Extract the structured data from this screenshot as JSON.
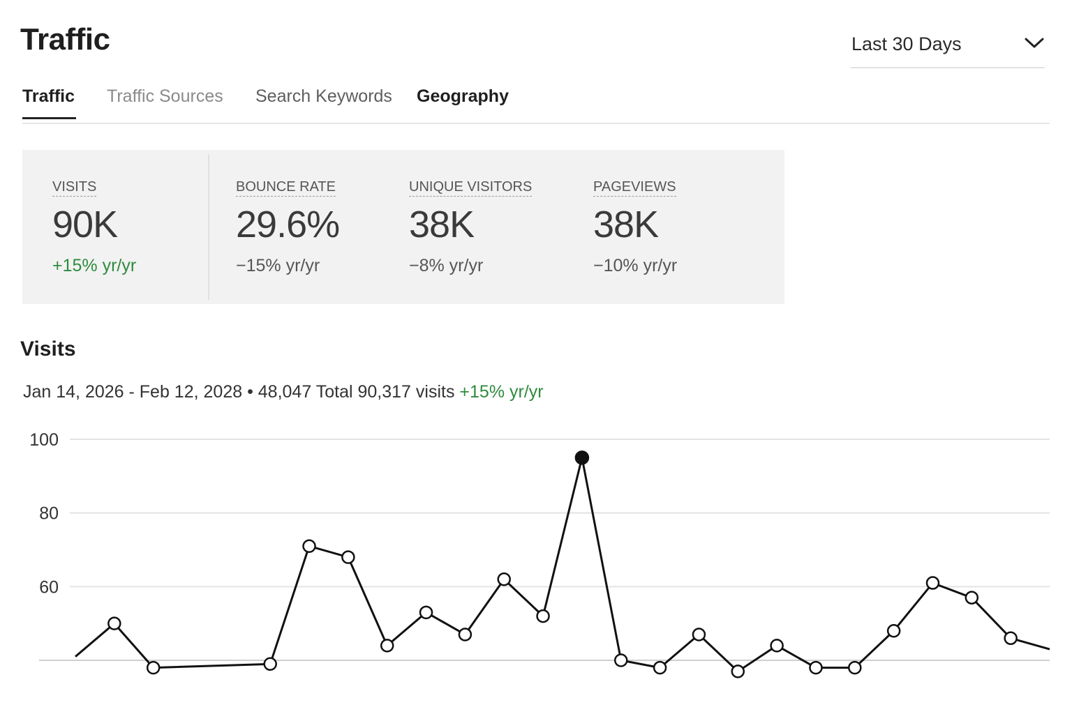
{
  "header": {
    "title": "Traffic",
    "range_select": {
      "value": "Last 30 Days",
      "icon": "chevron-down-icon"
    }
  },
  "tabs": [
    {
      "label": "Traffic",
      "active": true
    },
    {
      "label": "Traffic Sources",
      "active": false
    },
    {
      "label": "Search Keywords",
      "active": false
    },
    {
      "label": "Geography",
      "active": false
    }
  ],
  "kpis": [
    {
      "label": "VISITS",
      "value": "90K",
      "change": "+15% yr/yr",
      "trend": "positive"
    },
    {
      "label": "BOUNCE RATE",
      "value": "29.6%",
      "change": "−15% yr/yr",
      "trend": "negative"
    },
    {
      "label": "UNIQUE VISITORS",
      "value": "38K",
      "change": "−8% yr/yr",
      "trend": "negative"
    },
    {
      "label": "PAGEVIEWS",
      "value": "38K",
      "change": "−10% yr/yr",
      "trend": "negative"
    }
  ],
  "visits": {
    "title": "Visits",
    "summary_text": "Jan 14, 2026 - Feb 12, 2028 • 48,047 Total 90,317 visits",
    "summary_change": "+15% yr/yr"
  },
  "colors": {
    "positive": "#2e8b3e",
    "panel_bg": "#f2f2f2",
    "line": "#111111"
  },
  "chart_data": {
    "type": "line",
    "title": "",
    "xlabel": "",
    "ylabel": "",
    "ylim": [
      40,
      100
    ],
    "yticks": [
      100,
      80,
      60
    ],
    "grid": true,
    "series": [
      {
        "values": [
          41,
          50,
          38,
          null,
          null,
          39,
          71,
          68,
          44,
          53,
          47,
          62,
          52,
          95,
          40,
          38,
          47,
          37,
          44,
          38,
          38,
          48,
          61,
          57,
          46,
          43
        ]
      }
    ],
    "highlight_index": 13
  }
}
